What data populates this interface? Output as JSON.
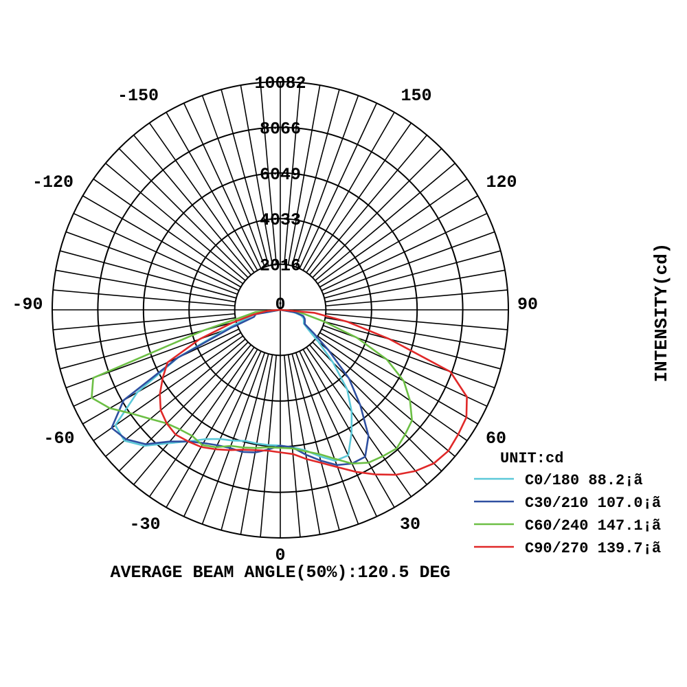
{
  "chart_data": {
    "type": "polar",
    "title": "AVERAGE BEAM ANGLE(50%):120.5 DEG",
    "ylabel": "INTENSITY(cd)",
    "unit_label": "UNIT:cd",
    "radial_ticks": [
      2016,
      4033,
      6049,
      8066,
      10082
    ],
    "radial_tick_labels": [
      "2016",
      "4033",
      "6049",
      "8066",
      "10082"
    ],
    "center_label": "0",
    "rmax": 10082,
    "angle_labels": [
      {
        "angle": 0,
        "text": "0"
      },
      {
        "angle": 30,
        "text": "30"
      },
      {
        "angle": 60,
        "text": "60"
      },
      {
        "angle": 90,
        "text": "90"
      },
      {
        "angle": 120,
        "text": "120"
      },
      {
        "angle": 150,
        "text": "150"
      },
      {
        "angle": -30,
        "text": "-30"
      },
      {
        "angle": -60,
        "text": "-60"
      },
      {
        "angle": -90,
        "text": "-90"
      },
      {
        "angle": -120,
        "text": "-120"
      },
      {
        "angle": -150,
        "text": "-150"
      }
    ],
    "angle_spoke_step_deg": 5,
    "series": [
      {
        "name": "C0/180 88.2¡ã",
        "color": "#5bc8d8",
        "points": [
          [
            -90,
            0
          ],
          [
            -80,
            1200
          ],
          [
            -70,
            2600
          ],
          [
            -65,
            5000
          ],
          [
            -60,
            7300
          ],
          [
            -55,
            8900
          ],
          [
            -50,
            9000
          ],
          [
            -45,
            8500
          ],
          [
            -40,
            7700
          ],
          [
            -35,
            7100
          ],
          [
            -30,
            6600
          ],
          [
            -25,
            6300
          ],
          [
            -20,
            6150
          ],
          [
            -15,
            6000
          ],
          [
            -10,
            6000
          ],
          [
            -5,
            6000
          ],
          [
            0,
            6000
          ],
          [
            5,
            6100
          ],
          [
            10,
            6300
          ],
          [
            15,
            6700
          ],
          [
            20,
            7100
          ],
          [
            25,
            7100
          ],
          [
            30,
            6300
          ],
          [
            35,
            5500
          ],
          [
            40,
            4600
          ],
          [
            45,
            3300
          ],
          [
            50,
            2200
          ],
          [
            55,
            1500
          ],
          [
            60,
            1200
          ],
          [
            65,
            1150
          ],
          [
            70,
            1100
          ],
          [
            75,
            950
          ],
          [
            80,
            600
          ],
          [
            90,
            0
          ]
        ]
      },
      {
        "name": "C30/210 107.0¡ã",
        "color": "#2e4fa0",
        "points": [
          [
            -90,
            0
          ],
          [
            -80,
            1100
          ],
          [
            -75,
            1200
          ],
          [
            -70,
            2300
          ],
          [
            -65,
            5000
          ],
          [
            -60,
            8000
          ],
          [
            -55,
            9100
          ],
          [
            -50,
            8900
          ],
          [
            -45,
            8400
          ],
          [
            -40,
            7600
          ],
          [
            -35,
            7100
          ],
          [
            -30,
            6800
          ],
          [
            -25,
            6600
          ],
          [
            -20,
            6500
          ],
          [
            -15,
            6500
          ],
          [
            -10,
            6400
          ],
          [
            -5,
            6200
          ],
          [
            0,
            6000
          ],
          [
            5,
            6100
          ],
          [
            10,
            6500
          ],
          [
            15,
            6900
          ],
          [
            20,
            7300
          ],
          [
            25,
            7500
          ],
          [
            30,
            7500
          ],
          [
            35,
            6800
          ],
          [
            40,
            5500
          ],
          [
            45,
            4300
          ],
          [
            50,
            2800
          ],
          [
            55,
            1800
          ],
          [
            60,
            1250
          ],
          [
            65,
            1200
          ],
          [
            70,
            1150
          ],
          [
            75,
            1050
          ],
          [
            80,
            700
          ],
          [
            90,
            0
          ]
        ]
      },
      {
        "name": "C60/240 147.1¡ã",
        "color": "#6cbf44",
        "points": [
          [
            -90,
            0
          ],
          [
            -85,
            1100
          ],
          [
            -80,
            1600
          ],
          [
            -75,
            3500
          ],
          [
            -70,
            8800
          ],
          [
            -65,
            9200
          ],
          [
            -60,
            8700
          ],
          [
            -55,
            8000
          ],
          [
            -50,
            7500
          ],
          [
            -45,
            7100
          ],
          [
            -40,
            6900
          ],
          [
            -35,
            6800
          ],
          [
            -30,
            6900
          ],
          [
            -25,
            6700
          ],
          [
            -20,
            6400
          ],
          [
            -15,
            6300
          ],
          [
            -10,
            6200
          ],
          [
            -5,
            6100
          ],
          [
            0,
            6100
          ],
          [
            5,
            6150
          ],
          [
            10,
            6350
          ],
          [
            15,
            6600
          ],
          [
            20,
            7000
          ],
          [
            25,
            7500
          ],
          [
            30,
            7800
          ],
          [
            35,
            7900
          ],
          [
            40,
            8000
          ],
          [
            45,
            7800
          ],
          [
            50,
            7600
          ],
          [
            55,
            7000
          ],
          [
            60,
            6300
          ],
          [
            65,
            5200
          ],
          [
            70,
            3600
          ],
          [
            75,
            2000
          ],
          [
            80,
            1100
          ],
          [
            85,
            700
          ],
          [
            90,
            0
          ]
        ]
      },
      {
        "name": "C90/270 139.7¡ã",
        "color": "#e02828",
        "points": [
          [
            -90,
            0
          ],
          [
            -85,
            600
          ],
          [
            -80,
            1200
          ],
          [
            -75,
            2200
          ],
          [
            -70,
            3800
          ],
          [
            -65,
            5500
          ],
          [
            -60,
            6000
          ],
          [
            -55,
            6500
          ],
          [
            -50,
            6900
          ],
          [
            -45,
            7100
          ],
          [
            -40,
            7200
          ],
          [
            -35,
            7100
          ],
          [
            -30,
            7000
          ],
          [
            -25,
            6800
          ],
          [
            -20,
            6600
          ],
          [
            -15,
            6400
          ],
          [
            -10,
            6300
          ],
          [
            -5,
            6250
          ],
          [
            0,
            6300
          ],
          [
            5,
            6400
          ],
          [
            10,
            6700
          ],
          [
            15,
            7000
          ],
          [
            20,
            7400
          ],
          [
            25,
            7900
          ],
          [
            30,
            8400
          ],
          [
            35,
            8900
          ],
          [
            40,
            9300
          ],
          [
            45,
            9600
          ],
          [
            50,
            9700
          ],
          [
            55,
            9600
          ],
          [
            60,
            9500
          ],
          [
            65,
            9100
          ],
          [
            70,
            8000
          ],
          [
            75,
            5000
          ],
          [
            80,
            3000
          ],
          [
            85,
            1500
          ],
          [
            90,
            0
          ]
        ]
      }
    ]
  }
}
